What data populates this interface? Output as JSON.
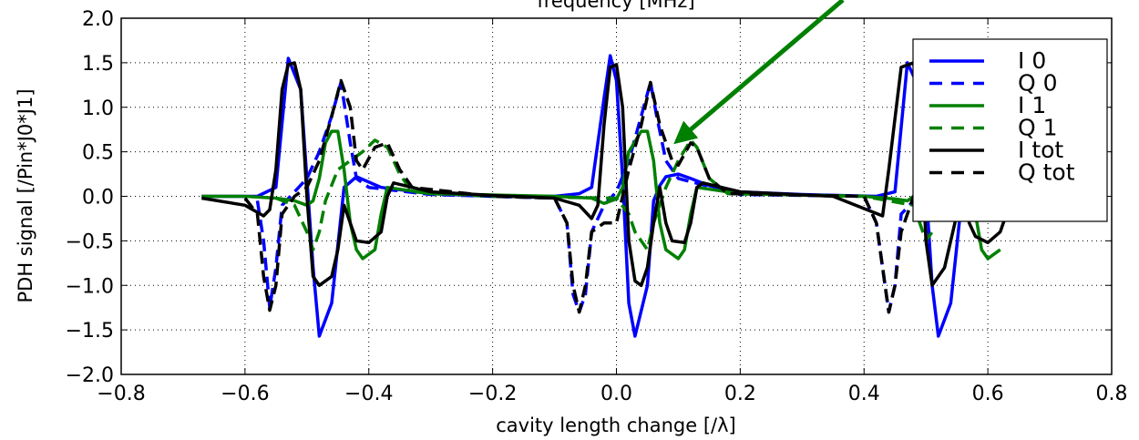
{
  "chart_data": {
    "type": "line",
    "top_axis_label": "frequency [MHz]",
    "xlabel": "cavity length change [/λ]",
    "ylabel": "PDH signal [/Pin*J0*J1]",
    "xlim": [
      -0.8,
      0.8
    ],
    "ylim": [
      -2.0,
      2.0
    ],
    "xticks": [
      "−0.8",
      "−0.6",
      "−0.4",
      "−0.2",
      "0.0",
      "0.2",
      "0.4",
      "0.6",
      "0.8"
    ],
    "yticks": [
      "−2.0",
      "−1.5",
      "−1.0",
      "−0.5",
      "0.0",
      "0.5",
      "1.0",
      "1.5",
      "2.0"
    ],
    "grid": true,
    "legend_position": "top-right",
    "x_range_of_data": [
      -0.67,
      0.63
    ],
    "series": [
      {
        "name": "I 0",
        "color": "#0000ff",
        "dash": "solid",
        "points": [
          [
            -0.67,
            0.0
          ],
          [
            -0.58,
            0.0
          ],
          [
            -0.55,
            0.1
          ],
          [
            -0.53,
            1.55
          ],
          [
            -0.51,
            1.2
          ],
          [
            -0.49,
            -0.8
          ],
          [
            -0.48,
            -1.57
          ],
          [
            -0.46,
            -1.2
          ],
          [
            -0.44,
            0.1
          ],
          [
            -0.42,
            0.22
          ],
          [
            -0.38,
            0.1
          ],
          [
            -0.3,
            0.03
          ],
          [
            -0.2,
            0.0
          ],
          [
            -0.1,
            0.0
          ],
          [
            -0.06,
            0.03
          ],
          [
            -0.04,
            0.1
          ],
          [
            -0.02,
            1.1
          ],
          [
            -0.01,
            1.58
          ],
          [
            0.0,
            1.3
          ],
          [
            0.01,
            0.2
          ],
          [
            0.02,
            -1.2
          ],
          [
            0.03,
            -1.57
          ],
          [
            0.05,
            -1.0
          ],
          [
            0.06,
            -0.05
          ],
          [
            0.07,
            0.12
          ],
          [
            0.08,
            0.22
          ],
          [
            0.1,
            0.25
          ],
          [
            0.12,
            0.2
          ],
          [
            0.15,
            0.12
          ],
          [
            0.2,
            0.05
          ],
          [
            0.3,
            0.02
          ],
          [
            0.42,
            0.0
          ],
          [
            0.45,
            0.05
          ],
          [
            0.47,
            1.5
          ],
          [
            0.49,
            1.2
          ],
          [
            0.51,
            -1.0
          ],
          [
            0.52,
            -1.57
          ],
          [
            0.54,
            -1.2
          ],
          [
            0.56,
            0.1
          ],
          [
            0.6,
            0.1
          ],
          [
            0.63,
            0.05
          ]
        ]
      },
      {
        "name": "Q 0",
        "color": "#0000ff",
        "dash": "dashed",
        "points": [
          [
            -0.58,
            -0.05
          ],
          [
            -0.57,
            -0.5
          ],
          [
            -0.56,
            -1.25
          ],
          [
            -0.55,
            -0.8
          ],
          [
            -0.54,
            -0.1
          ],
          [
            -0.52,
            0.05
          ],
          [
            -0.5,
            0.2
          ],
          [
            -0.48,
            0.5
          ],
          [
            -0.46,
            0.9
          ],
          [
            -0.445,
            1.28
          ],
          [
            -0.43,
            0.6
          ],
          [
            -0.42,
            0.2
          ],
          [
            -0.4,
            0.1
          ],
          [
            -0.3,
            0.02
          ],
          [
            -0.1,
            -0.02
          ],
          [
            -0.08,
            -0.3
          ],
          [
            -0.07,
            -1.1
          ],
          [
            -0.06,
            -1.3
          ],
          [
            -0.05,
            -1.1
          ],
          [
            -0.04,
            -0.4
          ],
          [
            -0.02,
            -0.1
          ],
          [
            0.0,
            0.05
          ],
          [
            0.02,
            0.4
          ],
          [
            0.04,
            0.9
          ],
          [
            0.055,
            1.28
          ],
          [
            0.065,
            0.9
          ],
          [
            0.08,
            0.4
          ],
          [
            0.1,
            0.2
          ],
          [
            0.2,
            0.02
          ],
          [
            0.4,
            0.0
          ],
          [
            0.42,
            -0.3
          ],
          [
            0.44,
            -1.3
          ],
          [
            0.45,
            -1.0
          ],
          [
            0.46,
            -0.2
          ],
          [
            0.5,
            0.1
          ],
          [
            0.55,
            1.3
          ],
          [
            0.57,
            0.5
          ]
        ]
      },
      {
        "name": "I 1",
        "color": "#008000",
        "dash": "solid",
        "points": [
          [
            -0.67,
            0.0
          ],
          [
            -0.6,
            0.0
          ],
          [
            -0.55,
            -0.02
          ],
          [
            -0.52,
            -0.05
          ],
          [
            -0.5,
            -0.1
          ],
          [
            -0.49,
            -0.05
          ],
          [
            -0.48,
            0.2
          ],
          [
            -0.47,
            0.6
          ],
          [
            -0.46,
            0.73
          ],
          [
            -0.45,
            0.73
          ],
          [
            -0.44,
            0.3
          ],
          [
            -0.43,
            -0.3
          ],
          [
            -0.42,
            -0.6
          ],
          [
            -0.41,
            -0.7
          ],
          [
            -0.39,
            -0.6
          ],
          [
            -0.38,
            -0.2
          ],
          [
            -0.37,
            0.1
          ],
          [
            -0.3,
            0.03
          ],
          [
            -0.1,
            0.0
          ],
          [
            -0.04,
            -0.02
          ],
          [
            -0.02,
            -0.08
          ],
          [
            0.0,
            -0.03
          ],
          [
            0.01,
            0.1
          ],
          [
            0.02,
            0.5
          ],
          [
            0.04,
            0.73
          ],
          [
            0.05,
            0.73
          ],
          [
            0.06,
            0.4
          ],
          [
            0.07,
            -0.3
          ],
          [
            0.08,
            -0.6
          ],
          [
            0.1,
            -0.7
          ],
          [
            0.11,
            -0.6
          ],
          [
            0.12,
            -0.2
          ],
          [
            0.13,
            0.1
          ],
          [
            0.2,
            0.03
          ],
          [
            0.4,
            0.0
          ],
          [
            0.45,
            -0.03
          ],
          [
            0.47,
            -0.05
          ],
          [
            0.5,
            0.1
          ],
          [
            0.53,
            0.7
          ],
          [
            0.55,
            0.7
          ],
          [
            0.57,
            0.2
          ],
          [
            0.59,
            -0.6
          ],
          [
            0.6,
            -0.7
          ],
          [
            0.62,
            -0.6
          ]
        ]
      },
      {
        "name": "Q 1",
        "color": "#008000",
        "dash": "dashed",
        "points": [
          [
            -0.55,
            -0.02
          ],
          [
            -0.52,
            -0.1
          ],
          [
            -0.5,
            -0.4
          ],
          [
            -0.49,
            -0.6
          ],
          [
            -0.48,
            -0.4
          ],
          [
            -0.47,
            -0.05
          ],
          [
            -0.45,
            0.3
          ],
          [
            -0.43,
            0.4
          ],
          [
            -0.41,
            0.5
          ],
          [
            -0.39,
            0.63
          ],
          [
            -0.37,
            0.55
          ],
          [
            -0.35,
            0.25
          ],
          [
            -0.33,
            0.05
          ],
          [
            -0.2,
            0.0
          ],
          [
            0.0,
            -0.02
          ],
          [
            0.02,
            -0.2
          ],
          [
            0.03,
            -0.4
          ],
          [
            0.05,
            -0.6
          ],
          [
            0.06,
            -0.3
          ],
          [
            0.08,
            0.1
          ],
          [
            0.1,
            0.4
          ],
          [
            0.12,
            0.63
          ],
          [
            0.13,
            0.55
          ],
          [
            0.15,
            0.2
          ],
          [
            0.18,
            0.03
          ],
          [
            0.4,
            0.0
          ],
          [
            0.48,
            -0.1
          ],
          [
            0.5,
            -0.5
          ],
          [
            0.51,
            -0.4
          ]
        ]
      },
      {
        "name": "I tot",
        "color": "#000000",
        "dash": "solid",
        "points": [
          [
            -0.67,
            -0.02
          ],
          [
            -0.6,
            -0.1
          ],
          [
            -0.57,
            -0.22
          ],
          [
            -0.56,
            -0.15
          ],
          [
            -0.55,
            0.3
          ],
          [
            -0.54,
            1.2
          ],
          [
            -0.53,
            1.48
          ],
          [
            -0.52,
            1.5
          ],
          [
            -0.51,
            1.2
          ],
          [
            -0.5,
            0.0
          ],
          [
            -0.49,
            -0.9
          ],
          [
            -0.48,
            -1.0
          ],
          [
            -0.46,
            -0.9
          ],
          [
            -0.45,
            -0.6
          ],
          [
            -0.44,
            -0.1
          ],
          [
            -0.43,
            -0.3
          ],
          [
            -0.42,
            -0.5
          ],
          [
            -0.4,
            -0.52
          ],
          [
            -0.38,
            -0.4
          ],
          [
            -0.37,
            0.0
          ],
          [
            -0.36,
            0.15
          ],
          [
            -0.3,
            0.05
          ],
          [
            -0.2,
            0.01
          ],
          [
            -0.1,
            -0.02
          ],
          [
            -0.06,
            -0.1
          ],
          [
            -0.04,
            -0.25
          ],
          [
            -0.03,
            -0.1
          ],
          [
            -0.02,
            0.8
          ],
          [
            -0.01,
            1.45
          ],
          [
            0.0,
            1.48
          ],
          [
            0.01,
            1.0
          ],
          [
            0.02,
            -0.5
          ],
          [
            0.03,
            -0.95
          ],
          [
            0.04,
            -1.0
          ],
          [
            0.05,
            -0.8
          ],
          [
            0.06,
            -0.3
          ],
          [
            0.07,
            0.1
          ],
          [
            0.08,
            -0.3
          ],
          [
            0.09,
            -0.5
          ],
          [
            0.11,
            -0.52
          ],
          [
            0.12,
            -0.3
          ],
          [
            0.13,
            0.1
          ],
          [
            0.14,
            0.15
          ],
          [
            0.2,
            0.05
          ],
          [
            0.35,
            0.0
          ],
          [
            0.43,
            -0.22
          ],
          [
            0.44,
            0.3
          ],
          [
            0.46,
            1.45
          ],
          [
            0.48,
            1.5
          ],
          [
            0.49,
            1.0
          ],
          [
            0.5,
            -0.5
          ],
          [
            0.51,
            -1.0
          ],
          [
            0.53,
            -0.8
          ],
          [
            0.55,
            -0.2
          ],
          [
            0.56,
            0.1
          ],
          [
            0.57,
            -0.3
          ],
          [
            0.58,
            -0.45
          ],
          [
            0.6,
            -0.52
          ],
          [
            0.62,
            -0.4
          ],
          [
            0.63,
            -0.2
          ]
        ]
      },
      {
        "name": "Q tot",
        "color": "#000000",
        "dash": "dashed",
        "points": [
          [
            -0.6,
            -0.02
          ],
          [
            -0.58,
            -0.2
          ],
          [
            -0.57,
            -0.9
          ],
          [
            -0.56,
            -1.28
          ],
          [
            -0.55,
            -1.0
          ],
          [
            -0.54,
            -0.2
          ],
          [
            -0.52,
            0.0
          ],
          [
            -0.5,
            0.1
          ],
          [
            -0.48,
            0.4
          ],
          [
            -0.46,
            0.9
          ],
          [
            -0.445,
            1.3
          ],
          [
            -0.43,
            1.0
          ],
          [
            -0.42,
            0.4
          ],
          [
            -0.41,
            0.3
          ],
          [
            -0.39,
            0.55
          ],
          [
            -0.37,
            0.6
          ],
          [
            -0.35,
            0.3
          ],
          [
            -0.33,
            0.1
          ],
          [
            -0.2,
            0.0
          ],
          [
            -0.1,
            -0.02
          ],
          [
            -0.08,
            -0.3
          ],
          [
            -0.07,
            -1.0
          ],
          [
            -0.06,
            -1.3
          ],
          [
            -0.05,
            -1.0
          ],
          [
            -0.04,
            -0.4
          ],
          [
            -0.02,
            -0.3
          ],
          [
            0.0,
            -0.3
          ],
          [
            0.02,
            0.3
          ],
          [
            0.04,
            0.8
          ],
          [
            0.055,
            1.28
          ],
          [
            0.07,
            0.8
          ],
          [
            0.09,
            0.4
          ],
          [
            0.1,
            0.35
          ],
          [
            0.12,
            0.6
          ],
          [
            0.13,
            0.55
          ],
          [
            0.15,
            0.2
          ],
          [
            0.18,
            0.03
          ],
          [
            0.4,
            0.0
          ],
          [
            0.42,
            -0.3
          ],
          [
            0.44,
            -1.3
          ],
          [
            0.45,
            -1.0
          ],
          [
            0.46,
            -0.4
          ],
          [
            0.48,
            0.0
          ],
          [
            0.5,
            0.2
          ],
          [
            0.52,
            0.6
          ],
          [
            0.54,
            1.1
          ],
          [
            0.56,
            1.3
          ],
          [
            0.58,
            0.8
          ]
        ]
      }
    ]
  }
}
